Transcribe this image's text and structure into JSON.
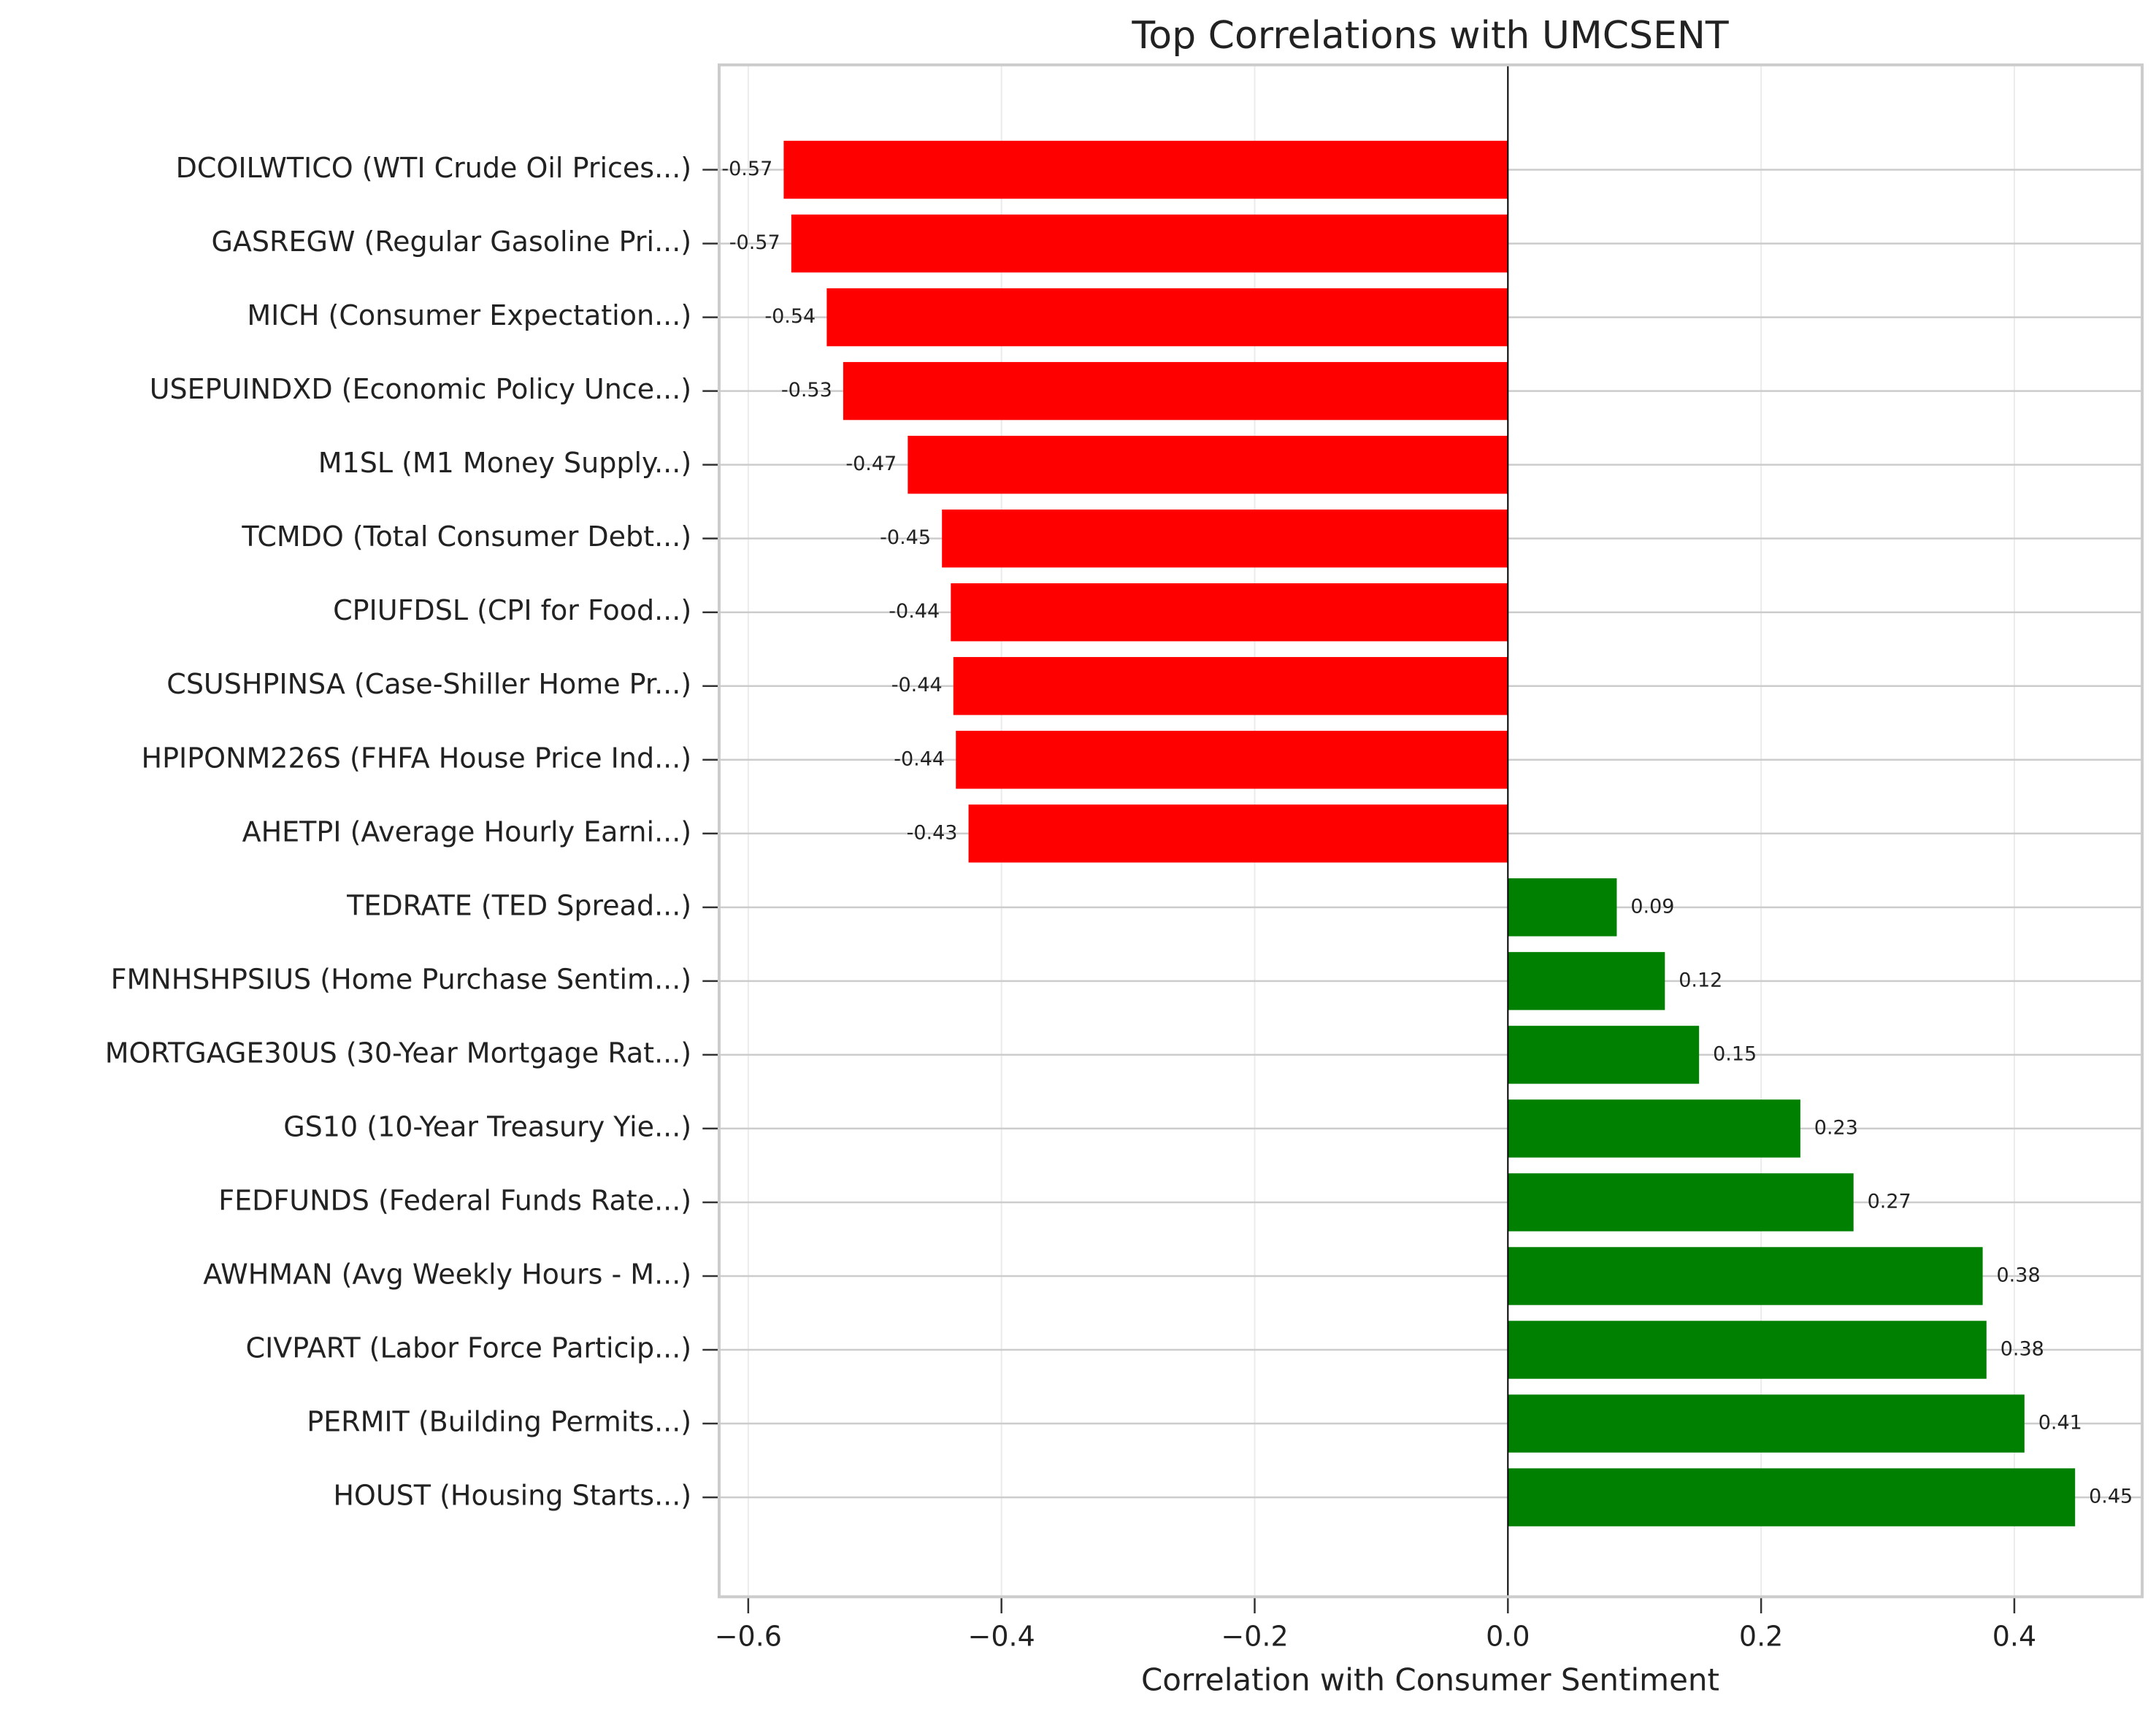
{
  "chart_data": {
    "type": "barh",
    "title": "Top Correlations with UMCSENT",
    "xlabel": "Correlation with Consumer Sentiment",
    "categories": [
      "DCOILWTICO (WTI Crude Oil Prices...)",
      "GASREGW (Regular Gasoline Pri...)",
      "MICH (Consumer Expectation...)",
      "USEPUINDXD (Economic Policy Unce...)",
      "M1SL (M1 Money Supply...)",
      "TCMDO (Total Consumer Debt...)",
      "CPIUFDSL (CPI for Food...)",
      "CSUSHPINSA (Case-Shiller Home Pr...)",
      "HPIPONM226S (FHFA House Price Ind...)",
      "AHETPI (Average Hourly Earni...)",
      "TEDRATE (TED Spread...)",
      "FMNHSHPSIUS (Home Purchase Sentim...)",
      "MORTGAGE30US (30-Year Mortgage Rat...)",
      "GS10 (10-Year Treasury Yie...)",
      "FEDFUNDS (Federal Funds Rate...)",
      "AWHMAN (Avg Weekly Hours - M...)",
      "CIVPART (Labor Force Particip...)",
      "PERMIT (Building Permits...)",
      "HOUST (Housing Starts...)"
    ],
    "values": [
      -0.572,
      -0.566,
      -0.538,
      -0.525,
      -0.474,
      -0.447,
      -0.44,
      -0.438,
      -0.436,
      -0.426,
      0.086,
      0.124,
      0.151,
      0.231,
      0.273,
      0.375,
      0.378,
      0.408,
      0.448
    ],
    "value_labels": [
      "-0.57",
      "-0.57",
      "-0.54",
      "-0.53",
      "-0.47",
      "-0.45",
      "-0.44",
      "-0.44",
      "-0.44",
      "-0.43",
      "0.09",
      "0.12",
      "0.15",
      "0.23",
      "0.27",
      "0.38",
      "0.38",
      "0.41",
      "0.45"
    ],
    "colors": [
      "#ff0000",
      "#ff0000",
      "#ff0000",
      "#ff0000",
      "#ff0000",
      "#ff0000",
      "#ff0000",
      "#ff0000",
      "#ff0000",
      "#ff0000",
      "#008000",
      "#008000",
      "#008000",
      "#008000",
      "#008000",
      "#008000",
      "#008000",
      "#008000",
      "#008000"
    ],
    "xlim": [
      -0.623,
      0.501
    ],
    "xticks": [
      {
        "value": -0.6,
        "label": "−0.6"
      },
      {
        "value": -0.4,
        "label": "−0.4"
      },
      {
        "value": -0.2,
        "label": "−0.2"
      },
      {
        "value": 0,
        "label": "0.0"
      },
      0.2,
      0.4
    ],
    "grid": true
  }
}
